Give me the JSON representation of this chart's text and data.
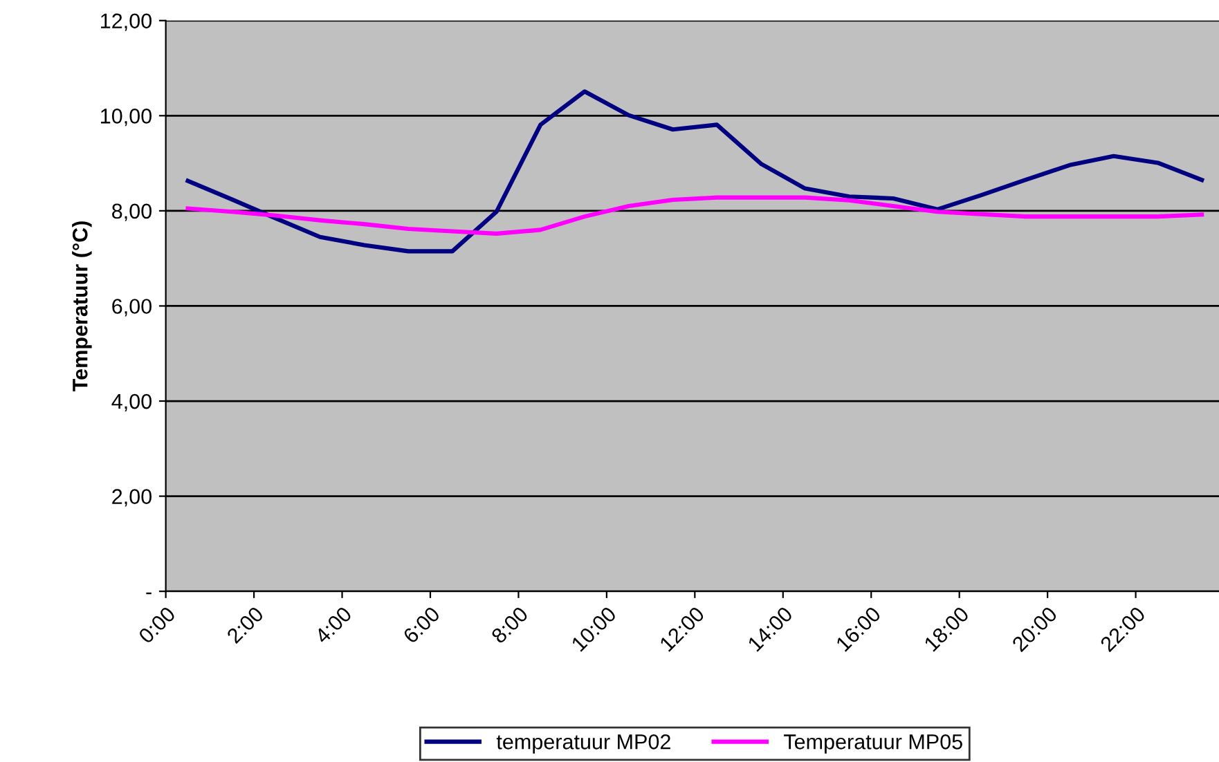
{
  "chart_data": {
    "type": "line",
    "ylabel": "Temperatuur (°C)",
    "x": [
      0.5,
      1.5,
      2.5,
      3.5,
      4.5,
      5.5,
      6.5,
      7.5,
      8.5,
      9.5,
      10.5,
      11.5,
      12.5,
      13.5,
      14.5,
      15.5,
      16.5,
      17.5,
      18.5,
      19.5,
      20.5,
      21.5,
      22.5,
      23.5
    ],
    "series": [
      {
        "name": "temperatuur MP02",
        "color": "#000080",
        "values": [
          8.63,
          8.24,
          7.84,
          7.45,
          7.28,
          7.15,
          7.15,
          7.98,
          9.81,
          10.51,
          10.01,
          9.71,
          9.81,
          8.99,
          8.47,
          8.3,
          8.26,
          8.03,
          8.33,
          8.65,
          8.96,
          9.15,
          9.01,
          8.65
        ]
      },
      {
        "name": "Temperatuur MP05",
        "color": "#ff00ff",
        "values": [
          8.05,
          7.98,
          7.9,
          7.8,
          7.72,
          7.62,
          7.57,
          7.52,
          7.6,
          7.88,
          8.1,
          8.23,
          8.28,
          8.28,
          8.28,
          8.22,
          8.1,
          7.98,
          7.93,
          7.88,
          7.88,
          7.88,
          7.88,
          7.92
        ]
      }
    ],
    "xlim": [
      0,
      24
    ],
    "xticks": [
      {
        "value": 0,
        "label": "0:00"
      },
      {
        "value": 2,
        "label": "2:00"
      },
      {
        "value": 4,
        "label": "4:00"
      },
      {
        "value": 6,
        "label": "6:00"
      },
      {
        "value": 8,
        "label": "8:00"
      },
      {
        "value": 10,
        "label": "10:00"
      },
      {
        "value": 12,
        "label": "12:00"
      },
      {
        "value": 14,
        "label": "14:00"
      },
      {
        "value": 16,
        "label": "16:00"
      },
      {
        "value": 18,
        "label": "18:00"
      },
      {
        "value": 20,
        "label": "20:00"
      },
      {
        "value": 22,
        "label": "22:00"
      }
    ],
    "ylim": [
      0,
      12
    ],
    "yticks": [
      {
        "value": 0,
        "label": "-"
      },
      {
        "value": 2,
        "label": "2,00"
      },
      {
        "value": 4,
        "label": "4,00"
      },
      {
        "value": 6,
        "label": "6,00"
      },
      {
        "value": 8,
        "label": "8,00"
      },
      {
        "value": 10,
        "label": "10,00"
      },
      {
        "value": 12,
        "label": "12,00"
      }
    ],
    "grid": "y",
    "legend": "bottom",
    "marker": "none",
    "line_style": "solid"
  }
}
